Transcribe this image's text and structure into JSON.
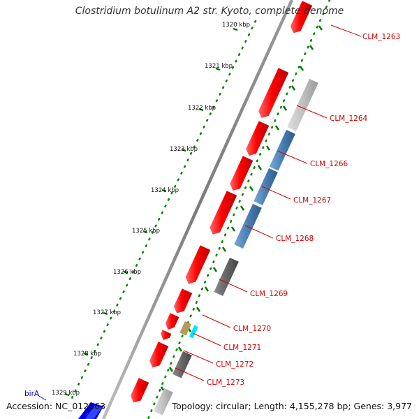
{
  "title": "Clostridium botulinum A2 str. Kyoto, complete genome",
  "accession": "Accession: NC_012563",
  "topology": "Topology: circular; Length: 4,155,278 bp; Genes: 3,977",
  "ruler_labels": [
    "1320 kbp",
    "1321 kbp",
    "1322 kbp",
    "1323 kbp",
    "1324 kbp",
    "1325 kbp",
    "1326 kbp",
    "1327 kbp",
    "1328 kbp",
    "1329 kbp"
  ],
  "gene_labels": [
    "CLM_1263",
    "CLM_1264",
    "CLM_1266",
    "CLM_1267",
    "CLM_1268",
    "CLM_1269",
    "CLM_1270",
    "CLM_1271",
    "CLM_1272",
    "CLM_1273"
  ],
  "other_labels": {
    "bira": "birA"
  },
  "colors": {
    "cds": "#ff0000",
    "blue_feature": "#4a7fb3",
    "gray_feature": "#666666",
    "light_gray_feature": "#c0c0c0",
    "tan_feature": "#b59a5a",
    "cyan_feature": "#00e5ff",
    "gene_label": "#d40000",
    "birA": "#0000cc",
    "tick_green": "#007700",
    "backbone": "#808080"
  }
}
